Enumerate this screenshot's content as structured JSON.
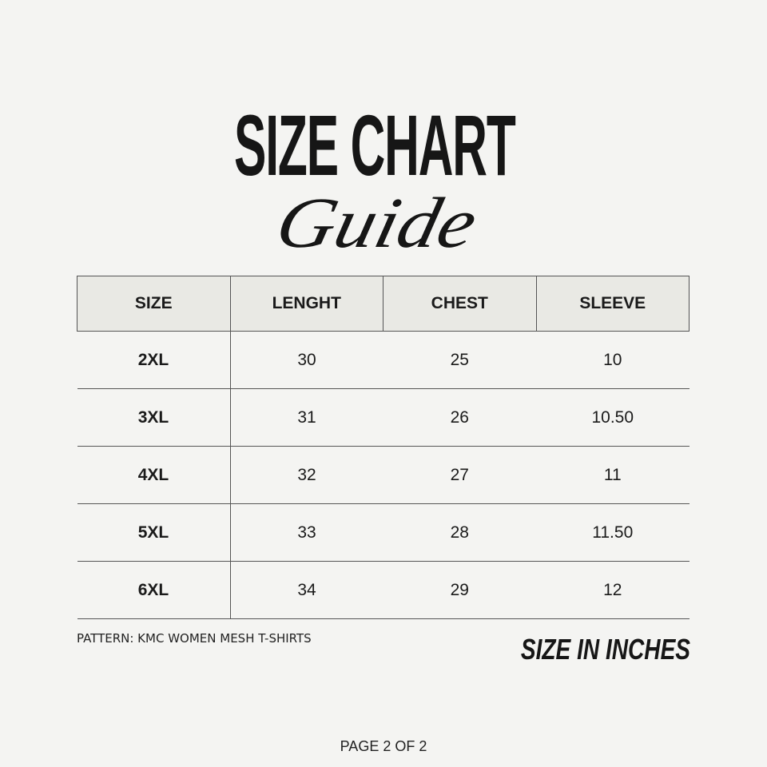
{
  "title": "SIZE CHART",
  "subtitle": "Guide",
  "table": {
    "headers": [
      "SIZE",
      "LENGHT",
      "CHEST",
      "SLEEVE"
    ],
    "rows": [
      [
        "2XL",
        "30",
        "25",
        "10"
      ],
      [
        "3XL",
        "31",
        "26",
        "10.50"
      ],
      [
        "4XL",
        "32",
        "27",
        "11"
      ],
      [
        "5XL",
        "33",
        "28",
        "11.50"
      ],
      [
        "6XL",
        "34",
        "29",
        "12"
      ]
    ]
  },
  "pattern": "PATTERN: KMC WOMEN MESH T-SHIRTS",
  "units_note": "SIZE IN INCHES",
  "page": "PAGE 2 OF 2",
  "colors": {
    "background": "#f4f4f2",
    "header_bg": "#e9e9e4",
    "text": "#1a1a1a"
  }
}
